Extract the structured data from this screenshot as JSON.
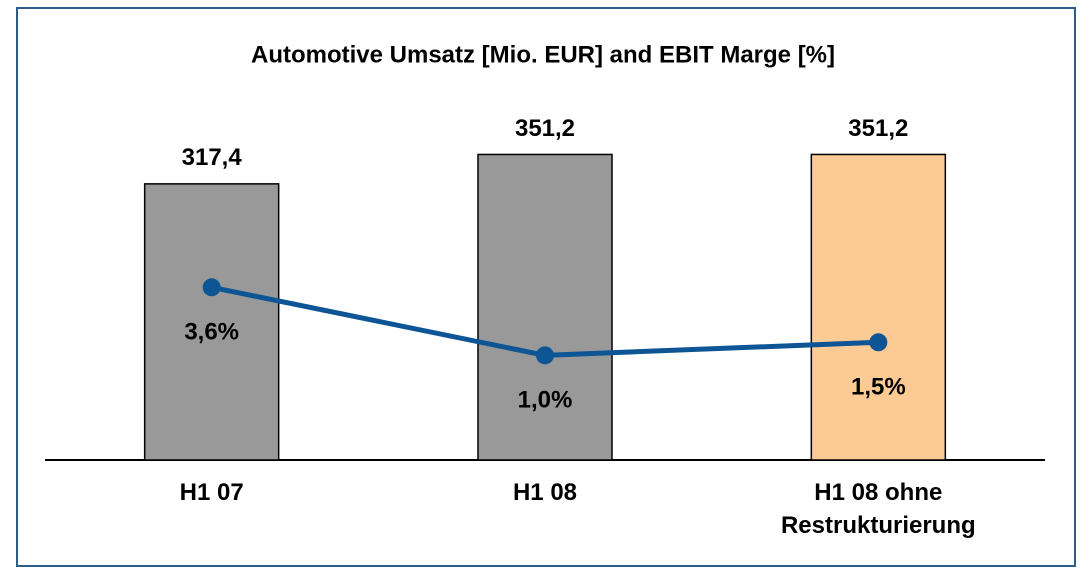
{
  "chart_data": {
    "type": "bar",
    "title": "Automotive Umsatz [Mio. EUR] and EBIT Marge [%]",
    "categories": [
      "H1 07",
      "H1 08",
      "H1 08 ohne Restrukturierung"
    ],
    "series": [
      {
        "type": "bar",
        "colors": [
          "#999999",
          "#999999",
          "#fcca95"
        ],
        "values": [
          317.4,
          351.2,
          351.2
        ],
        "value_labels": [
          "317,4",
          "351,2",
          "351,2"
        ]
      },
      {
        "type": "line",
        "axis": "y2",
        "color": "#0d5595",
        "values": [
          3.6,
          1.0,
          1.5
        ],
        "value_labels": [
          "3,6%",
          "1,0%",
          "1,5%"
        ]
      }
    ],
    "ylim": [
      0,
      400
    ],
    "y2lim": [
      -3,
      10.3
    ]
  }
}
